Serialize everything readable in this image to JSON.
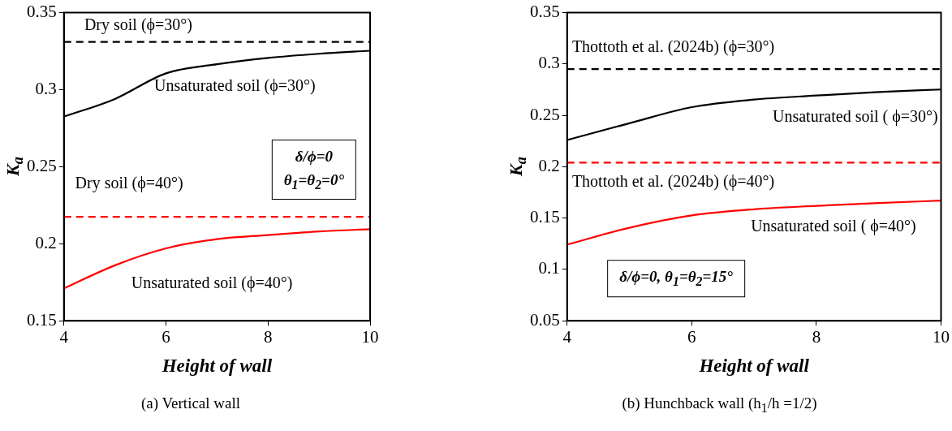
{
  "chart_data": [
    {
      "type": "line",
      "xlabel": "Height of wall",
      "ylabel": "K$_{a}$",
      "x": [
        4,
        5,
        6,
        7,
        8,
        9,
        10
      ],
      "series": [
        {
          "name": "Unsaturated soil (ϕ=30°)",
          "color": "#000000",
          "values": [
            0.2825,
            0.294,
            0.3106,
            0.3165,
            0.3206,
            0.3233,
            0.3253
          ]
        },
        {
          "name": "Unsaturated soil (ϕ=40°)",
          "color": "#ff0000",
          "values": [
            0.171,
            0.186,
            0.197,
            0.203,
            0.2056,
            0.208,
            0.2094
          ]
        }
      ],
      "ref_lines": [
        {
          "axis": "y",
          "value": 0.331,
          "color": "#000000",
          "line_style": "dashed"
        },
        {
          "axis": "y",
          "value": 0.2175,
          "color": "#ff0000",
          "line_style": "dashed"
        }
      ],
      "annotations": [
        "δ/ϕ=0\nθ$_{1}$=θ$_{2}$=0°",
        "(a) Vertical wall",
        {
          "text": "Dry soil (ϕ=30°)",
          "x": 4.4,
          "y": 0.331
        },
        {
          "text": "Dry soil (ϕ=40°)",
          "x": 4.22,
          "y": 0.2175
        }
      ],
      "xlim": [
        4,
        10
      ],
      "xticks": [
        4,
        6,
        8,
        10
      ],
      "ylim": [
        0.15,
        0.35
      ],
      "yticks": [
        0.15,
        0.2,
        0.25,
        0.3,
        0.35
      ],
      "grid": false,
      "legend": false,
      "marker": "none",
      "line_style": "solid"
    },
    {
      "type": "line",
      "xlabel": "Height of wall",
      "ylabel": "K$_{a}$",
      "x": [
        4,
        5,
        6,
        7,
        8,
        9,
        10
      ],
      "series": [
        {
          "name": "Unsaturated soil ( ϕ=30°)",
          "color": "#000000",
          "values": [
            0.226,
            0.2423,
            0.258,
            0.2654,
            0.2693,
            0.2728,
            0.2752
          ]
        },
        {
          "name": "Unsaturated soil ( ϕ=40°)",
          "color": "#ff0000",
          "values": [
            0.1242,
            0.1406,
            0.1526,
            0.1586,
            0.1619,
            0.1646,
            0.167
          ]
        }
      ],
      "ref_lines": [
        {
          "axis": "y",
          "value": 0.295,
          "color": "#000000",
          "line_style": "dashed"
        },
        {
          "axis": "y",
          "value": 0.204,
          "color": "#ff0000",
          "line_style": "dashed"
        }
      ],
      "annotations": [
        "δ/ϕ=0, θ$_{1}$=θ$_{2}$=15°",
        "(b) Hunchback wall (h$_{1}$/h =1/2)",
        {
          "text": "Thottoth et al. (2024b) (ϕ=30°)",
          "x": 4.08,
          "y": 0.295
        },
        {
          "text": "Thottoth et al. (2024b) (ϕ=40°)",
          "x": 4.08,
          "y": 0.204
        }
      ],
      "xlim": [
        4,
        10
      ],
      "xticks": [
        4,
        6,
        8,
        10
      ],
      "ylim": [
        0.05,
        0.35
      ],
      "yticks": [
        0.05,
        0.1,
        0.15,
        0.2,
        0.25,
        0.3,
        0.35
      ],
      "grid": false,
      "legend": false,
      "marker": "none",
      "line_style": "solid"
    }
  ]
}
